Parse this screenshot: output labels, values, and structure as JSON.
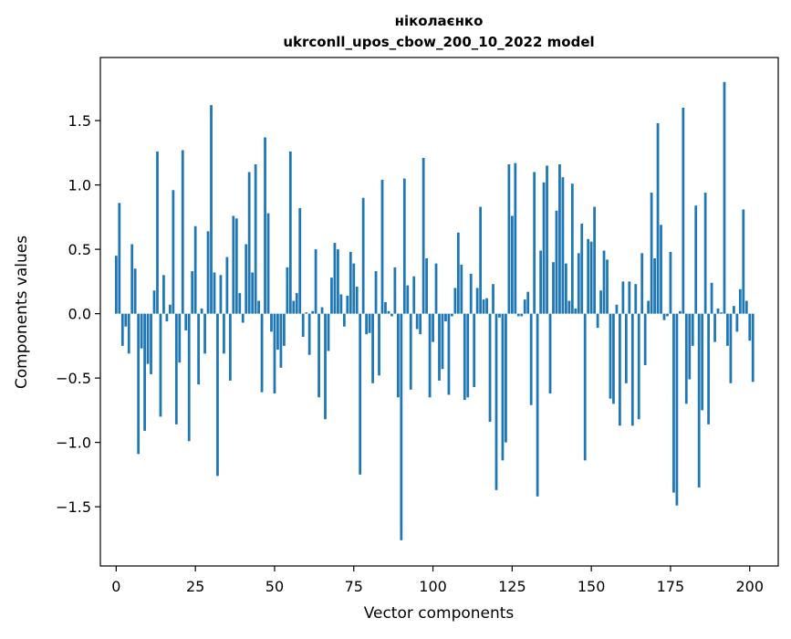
{
  "chart_data": {
    "type": "bar",
    "title": "ніколаєнко",
    "subtitle": "ukrconll_upos_cbow_200_10_2022 model",
    "xlabel": "Vector components",
    "ylabel": "Components values",
    "xlim": [
      -5,
      209
    ],
    "ylim": [
      -1.96,
      1.99
    ],
    "xticks": [
      0,
      25,
      50,
      75,
      100,
      125,
      150,
      175,
      200
    ],
    "xtick_labels": [
      "0",
      "25",
      "50",
      "75",
      "100",
      "125",
      "150",
      "175",
      "200"
    ],
    "yticks": [
      -1.5,
      -1.0,
      -0.5,
      0.0,
      0.5,
      1.0,
      1.5
    ],
    "ytick_labels": [
      "−1.5",
      "−1.0",
      "−0.5",
      "0.0",
      "0.5",
      "1.0",
      "1.5"
    ],
    "bar_color": "#1f77b4",
    "series": [
      {
        "name": "components",
        "values": [
          0.45,
          0.86,
          -0.25,
          -0.1,
          -0.31,
          0.54,
          0.35,
          -1.09,
          -0.27,
          -0.91,
          -0.39,
          -0.47,
          0.18,
          1.26,
          -0.8,
          0.3,
          -0.06,
          0.07,
          0.96,
          -0.86,
          -0.38,
          1.27,
          -0.13,
          -0.99,
          0.33,
          0.68,
          -0.55,
          0.04,
          -0.31,
          0.64,
          1.62,
          0.32,
          -1.26,
          0.3,
          -0.31,
          0.44,
          -0.52,
          0.76,
          0.74,
          0.16,
          -0.07,
          0.54,
          1.1,
          0.32,
          1.16,
          0.1,
          -0.61,
          1.37,
          0.78,
          -0.14,
          -0.62,
          -0.28,
          -0.42,
          -0.25,
          0.36,
          1.26,
          0.1,
          0.16,
          0.82,
          -0.18,
          0.01,
          -0.32,
          0.02,
          0.5,
          -0.65,
          0.05,
          -0.82,
          -0.29,
          0.28,
          0.55,
          0.5,
          0.15,
          -0.1,
          0.14,
          0.48,
          0.39,
          0.21,
          -1.25,
          0.9,
          -0.16,
          -0.15,
          -0.54,
          0.33,
          -0.48,
          1.04,
          0.09,
          0.02,
          -0.02,
          0.36,
          -0.65,
          -1.76,
          1.05,
          0.22,
          -0.59,
          0.29,
          -0.12,
          -0.16,
          1.21,
          0.43,
          -0.65,
          -0.22,
          0.39,
          -0.52,
          -0.43,
          -0.06,
          -0.63,
          -0.02,
          0.2,
          0.63,
          0.38,
          -0.67,
          -0.65,
          0.31,
          -0.57,
          0.2,
          0.83,
          0.11,
          0.12,
          -0.84,
          0.23,
          -1.37,
          -0.03,
          -1.14,
          -1.0,
          1.16,
          0.76,
          1.17,
          -0.02,
          -0.02,
          0.11,
          0.17,
          -0.71,
          1.1,
          -1.42,
          0.49,
          1.02,
          1.15,
          -0.62,
          0.4,
          0.8,
          1.16,
          1.06,
          0.39,
          0.1,
          1.01,
          0.04,
          0.47,
          0.7,
          -1.14,
          0.58,
          0.56,
          0.83,
          -0.11,
          0.18,
          0.49,
          0.42,
          -0.66,
          -0.7,
          0.07,
          -0.87,
          0.25,
          -0.54,
          0.25,
          -0.87,
          0.23,
          -0.82,
          0.47,
          -0.4,
          0.1,
          0.94,
          0.43,
          1.48,
          0.69,
          -0.05,
          -0.02,
          0.48,
          -1.39,
          -1.49,
          0.02,
          1.6,
          -0.7,
          -0.51,
          -0.25,
          0.84,
          -1.35,
          -0.75,
          0.94,
          -0.86,
          0.24,
          -0.22,
          0.04,
          0.01,
          1.8,
          -0.25,
          -0.54,
          0.06,
          -0.14,
          0.19,
          0.81,
          0.1,
          -0.21,
          -0.53
        ]
      }
    ]
  }
}
